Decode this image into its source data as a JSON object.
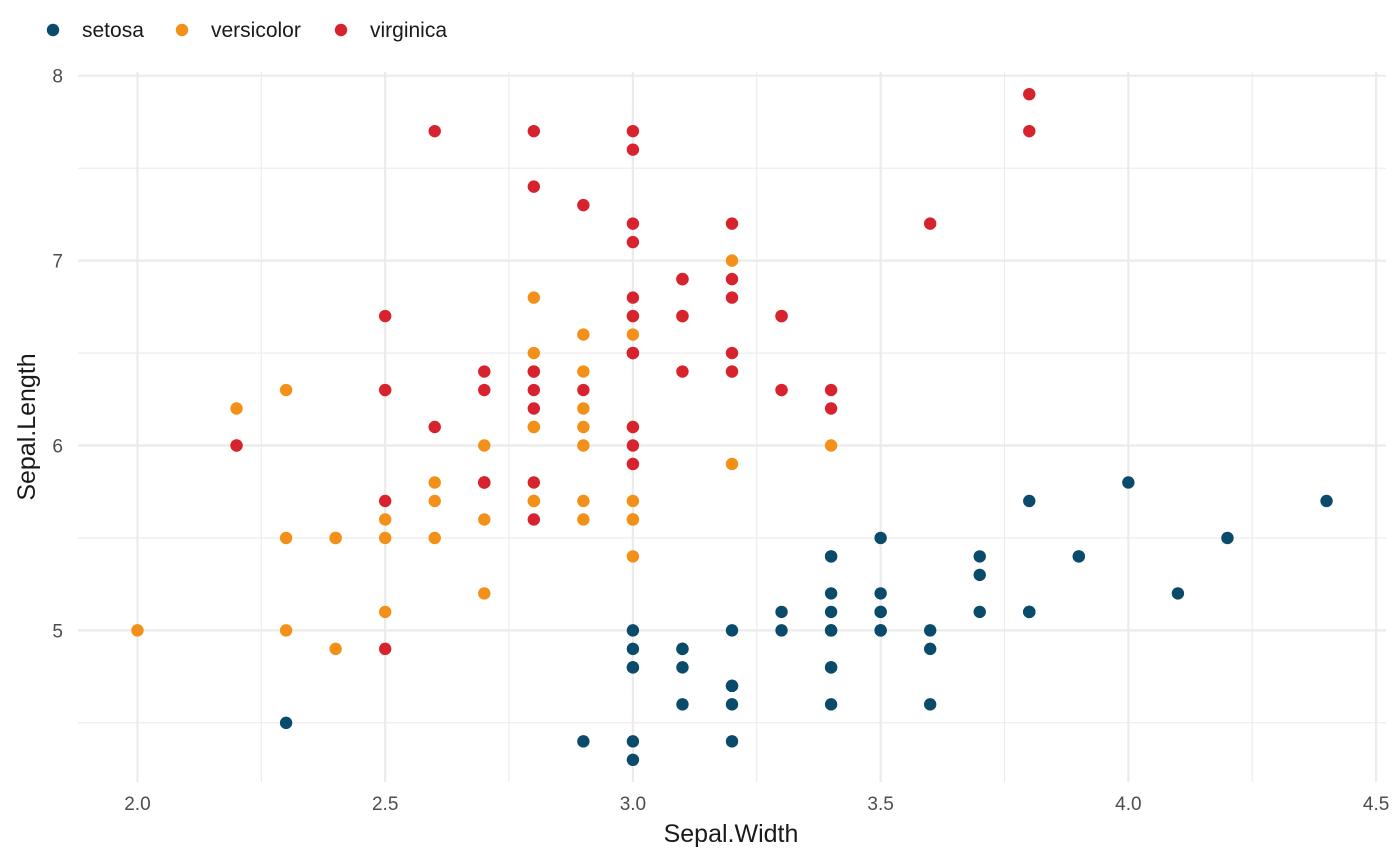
{
  "chart_data": {
    "type": "scatter",
    "title": "",
    "xlabel": "Sepal.Width",
    "ylabel": "Sepal.Length",
    "xlim": [
      1.88,
      4.52
    ],
    "ylim": [
      4.18,
      8.02
    ],
    "x_ticks": [
      2.0,
      2.5,
      3.0,
      3.5,
      4.0,
      4.5
    ],
    "x_tick_labels": [
      "2.0",
      "2.5",
      "3.0",
      "3.5",
      "4.0",
      "4.5"
    ],
    "y_ticks": [
      5,
      6,
      7,
      8
    ],
    "y_tick_labels": [
      "5",
      "6",
      "7",
      "8"
    ],
    "grid": true,
    "legend": {
      "position": "top-left"
    },
    "series": [
      {
        "name": "setosa",
        "color": "#0a4a6a",
        "points": [
          [
            3.5,
            5.1
          ],
          [
            3.0,
            4.9
          ],
          [
            3.2,
            4.7
          ],
          [
            3.1,
            4.6
          ],
          [
            3.6,
            5.0
          ],
          [
            3.9,
            5.4
          ],
          [
            3.4,
            4.6
          ],
          [
            3.4,
            5.0
          ],
          [
            2.9,
            4.4
          ],
          [
            3.1,
            4.9
          ],
          [
            3.7,
            5.4
          ],
          [
            3.4,
            4.8
          ],
          [
            3.0,
            4.8
          ],
          [
            3.0,
            4.3
          ],
          [
            4.0,
            5.8
          ],
          [
            4.4,
            5.7
          ],
          [
            3.9,
            5.4
          ],
          [
            3.5,
            5.1
          ],
          [
            3.8,
            5.7
          ],
          [
            3.8,
            5.1
          ],
          [
            3.4,
            5.4
          ],
          [
            3.7,
            5.1
          ],
          [
            3.6,
            4.6
          ],
          [
            3.3,
            5.1
          ],
          [
            3.4,
            4.8
          ],
          [
            3.0,
            5.0
          ],
          [
            3.4,
            5.0
          ],
          [
            3.5,
            5.2
          ],
          [
            3.4,
            5.2
          ],
          [
            3.2,
            4.7
          ],
          [
            3.1,
            4.8
          ],
          [
            3.4,
            5.4
          ],
          [
            4.1,
            5.2
          ],
          [
            4.2,
            5.5
          ],
          [
            3.1,
            4.9
          ],
          [
            3.2,
            5.0
          ],
          [
            3.5,
            5.5
          ],
          [
            3.6,
            4.9
          ],
          [
            3.0,
            4.4
          ],
          [
            3.4,
            5.1
          ],
          [
            3.5,
            5.0
          ],
          [
            2.3,
            4.5
          ],
          [
            3.2,
            4.4
          ],
          [
            3.5,
            5.0
          ],
          [
            3.8,
            5.1
          ],
          [
            3.0,
            4.8
          ],
          [
            3.8,
            5.1
          ],
          [
            3.2,
            4.6
          ],
          [
            3.7,
            5.3
          ],
          [
            3.3,
            5.0
          ]
        ]
      },
      {
        "name": "versicolor",
        "color": "#f39019",
        "points": [
          [
            3.2,
            7.0
          ],
          [
            3.2,
            6.4
          ],
          [
            3.1,
            6.9
          ],
          [
            2.3,
            5.5
          ],
          [
            2.8,
            6.5
          ],
          [
            2.8,
            5.7
          ],
          [
            3.3,
            6.3
          ],
          [
            2.4,
            4.9
          ],
          [
            2.9,
            6.6
          ],
          [
            2.7,
            5.2
          ],
          [
            2.0,
            5.0
          ],
          [
            3.0,
            5.9
          ],
          [
            2.2,
            6.0
          ],
          [
            2.9,
            6.1
          ],
          [
            2.9,
            5.6
          ],
          [
            3.1,
            6.7
          ],
          [
            3.0,
            5.6
          ],
          [
            2.7,
            5.8
          ],
          [
            2.2,
            6.2
          ],
          [
            2.5,
            5.6
          ],
          [
            3.2,
            5.9
          ],
          [
            2.8,
            6.1
          ],
          [
            2.5,
            6.3
          ],
          [
            2.8,
            6.1
          ],
          [
            2.9,
            6.4
          ],
          [
            3.0,
            6.6
          ],
          [
            2.8,
            6.8
          ],
          [
            3.0,
            6.7
          ],
          [
            2.9,
            6.0
          ],
          [
            2.6,
            5.7
          ],
          [
            2.4,
            5.5
          ],
          [
            2.4,
            5.5
          ],
          [
            2.7,
            5.8
          ],
          [
            2.7,
            6.0
          ],
          [
            3.0,
            5.4
          ],
          [
            3.4,
            6.0
          ],
          [
            3.1,
            6.7
          ],
          [
            2.3,
            6.3
          ],
          [
            3.0,
            5.6
          ],
          [
            2.5,
            5.5
          ],
          [
            2.6,
            5.5
          ],
          [
            3.0,
            6.1
          ],
          [
            2.6,
            5.8
          ],
          [
            2.3,
            5.0
          ],
          [
            2.7,
            5.6
          ],
          [
            3.0,
            5.7
          ],
          [
            2.9,
            5.7
          ],
          [
            2.9,
            6.2
          ],
          [
            2.5,
            5.1
          ],
          [
            2.8,
            5.7
          ]
        ]
      },
      {
        "name": "virginica",
        "color": "#d7232e",
        "points": [
          [
            3.3,
            6.3
          ],
          [
            2.7,
            5.8
          ],
          [
            3.0,
            7.1
          ],
          [
            2.9,
            6.3
          ],
          [
            3.0,
            6.5
          ],
          [
            3.0,
            7.6
          ],
          [
            2.5,
            4.9
          ],
          [
            2.9,
            7.3
          ],
          [
            2.5,
            6.7
          ],
          [
            3.6,
            7.2
          ],
          [
            3.2,
            6.5
          ],
          [
            2.7,
            6.4
          ],
          [
            3.0,
            6.8
          ],
          [
            2.5,
            5.7
          ],
          [
            2.8,
            5.8
          ],
          [
            3.2,
            6.4
          ],
          [
            3.0,
            6.5
          ],
          [
            3.8,
            7.7
          ],
          [
            2.6,
            7.7
          ],
          [
            2.2,
            6.0
          ],
          [
            3.2,
            6.9
          ],
          [
            2.8,
            5.6
          ],
          [
            2.8,
            7.7
          ],
          [
            2.7,
            6.3
          ],
          [
            3.3,
            6.7
          ],
          [
            3.2,
            7.2
          ],
          [
            2.8,
            6.2
          ],
          [
            3.0,
            6.1
          ],
          [
            2.8,
            6.4
          ],
          [
            3.0,
            7.2
          ],
          [
            2.8,
            7.4
          ],
          [
            3.8,
            7.9
          ],
          [
            2.8,
            6.4
          ],
          [
            2.8,
            6.3
          ],
          [
            2.6,
            6.1
          ],
          [
            3.0,
            7.7
          ],
          [
            3.4,
            6.3
          ],
          [
            3.1,
            6.4
          ],
          [
            3.0,
            6.0
          ],
          [
            3.1,
            6.9
          ],
          [
            3.1,
            6.7
          ],
          [
            3.1,
            6.9
          ],
          [
            2.7,
            5.8
          ],
          [
            3.2,
            6.8
          ],
          [
            3.3,
            6.7
          ],
          [
            3.0,
            6.7
          ],
          [
            2.5,
            6.3
          ],
          [
            3.0,
            6.5
          ],
          [
            3.4,
            6.2
          ],
          [
            3.0,
            5.9
          ]
        ]
      }
    ]
  }
}
